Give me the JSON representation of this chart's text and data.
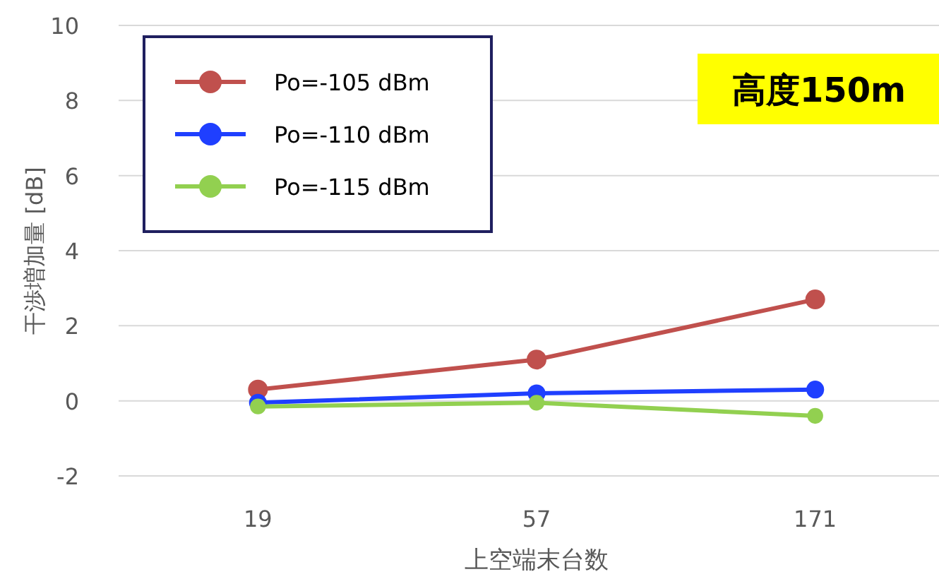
{
  "chart_data": {
    "type": "line",
    "xlabel": "上空端末台数",
    "ylabel": "干渉増加量 [dB]",
    "categories": [
      "19",
      "57",
      "171"
    ],
    "series": [
      {
        "name": "Po=-105 dBm",
        "color": "#c0504d",
        "values": [
          0.3,
          1.1,
          2.7
        ]
      },
      {
        "name": "Po=-110 dBm",
        "color": "#1f3fff",
        "values": [
          -0.05,
          0.2,
          0.3
        ]
      },
      {
        "name": "Po=-115 dBm",
        "color": "#92d050",
        "values": [
          -0.15,
          -0.05,
          -0.4
        ]
      }
    ],
    "ylim": [
      -2,
      10
    ],
    "yticks": [
      -2,
      0,
      2,
      4,
      6,
      8,
      10
    ],
    "grid": "y",
    "legend": "top left",
    "marker": "circle",
    "line_style": "solid",
    "annotations": [
      "高度150m"
    ]
  }
}
